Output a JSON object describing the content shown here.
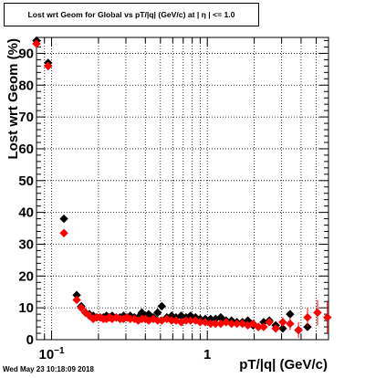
{
  "chart_data": {
    "type": "scatter",
    "title": "Lost wrt Geom for Global vs pT/|q| (GeV/c) at | η | <= 1.0",
    "xlabel": "pT/|q| (GeV/c)",
    "ylabel": "Lost wrt Geom (%)",
    "x_scale": "log",
    "xlim": [
      0.08,
      6.0
    ],
    "ylim": [
      0,
      95
    ],
    "grid": true,
    "x_tick_labels": [
      {
        "value": 0.1,
        "base": "10",
        "exp": "−1"
      },
      {
        "value": 1,
        "base": "1",
        "exp": ""
      }
    ],
    "y_ticks": [
      0,
      10,
      20,
      30,
      40,
      50,
      60,
      70,
      80,
      90
    ],
    "y_tick_labels": [
      "0",
      "10",
      "20",
      "30",
      "40",
      "50",
      "60",
      "70",
      "80",
      "90"
    ],
    "series": [
      {
        "color": "#000000",
        "x": [
          0.08,
          0.095,
          0.12,
          0.145,
          0.155,
          0.165,
          0.175,
          0.185,
          0.195,
          0.205,
          0.215,
          0.225,
          0.235,
          0.245,
          0.26,
          0.275,
          0.29,
          0.305,
          0.32,
          0.34,
          0.36,
          0.38,
          0.4,
          0.42,
          0.45,
          0.48,
          0.51,
          0.55,
          0.59,
          0.63,
          0.68,
          0.73,
          0.78,
          0.84,
          0.9,
          0.97,
          1.05,
          1.13,
          1.22,
          1.32,
          1.43,
          1.55,
          1.68,
          1.82,
          1.97,
          2.13,
          2.3,
          2.5,
          2.75,
          3.05,
          3.4,
          3.85,
          4.4
        ],
        "y": [
          94,
          87,
          38,
          14,
          10.5,
          8.5,
          8,
          7.5,
          7,
          7,
          7,
          7.5,
          7,
          7.5,
          7,
          7,
          7.5,
          7,
          7.5,
          7,
          7,
          8.5,
          7.5,
          8,
          7,
          8.5,
          10.5,
          7,
          7.5,
          7,
          7.5,
          7,
          7.5,
          7,
          6.5,
          6.5,
          6.5,
          6.5,
          7,
          6,
          6,
          5.5,
          5.5,
          6,
          4.5,
          4,
          5.5,
          6,
          4.5,
          3.5,
          8,
          3,
          4
        ]
      },
      {
        "color": "#ff0000",
        "x": [
          0.08,
          0.095,
          0.12,
          0.145,
          0.155,
          0.165,
          0.175,
          0.185,
          0.195,
          0.205,
          0.215,
          0.225,
          0.235,
          0.245,
          0.26,
          0.275,
          0.29,
          0.305,
          0.32,
          0.34,
          0.36,
          0.38,
          0.4,
          0.42,
          0.45,
          0.48,
          0.51,
          0.55,
          0.59,
          0.63,
          0.68,
          0.73,
          0.78,
          0.84,
          0.9,
          0.97,
          1.05,
          1.13,
          1.22,
          1.32,
          1.43,
          1.55,
          1.68,
          1.82,
          1.97,
          2.13,
          2.3,
          2.5,
          2.75,
          3.05,
          3.4,
          3.85,
          4.4,
          5.1,
          5.9
        ],
        "y": [
          93,
          86,
          33.5,
          12.5,
          10,
          8.5,
          7.5,
          6.5,
          7,
          7,
          6.5,
          6.5,
          7,
          6.5,
          7,
          6.5,
          6.5,
          7,
          6.5,
          6.5,
          6,
          6.5,
          6.5,
          6,
          6.5,
          6,
          6,
          6.5,
          6,
          6,
          5.5,
          6,
          6,
          6,
          5.5,
          5.5,
          5,
          5,
          5,
          5.5,
          5,
          5,
          5,
          4.5,
          5,
          4,
          4,
          5.5,
          3.5,
          5.5,
          5,
          3,
          7,
          8.5,
          7
        ],
        "y_err": [
          0.5,
          0.5,
          0.5,
          0.5,
          0.5,
          0.5,
          0.5,
          0.5,
          0.5,
          0.5,
          0.5,
          0.5,
          0.5,
          0.5,
          0.5,
          0.5,
          0.5,
          0.5,
          0.5,
          0.5,
          0.5,
          0.5,
          0.5,
          0.5,
          0.5,
          0.5,
          0.5,
          0.5,
          0.5,
          0.5,
          0.5,
          0.5,
          0.5,
          0.5,
          0.5,
          0.5,
          0.5,
          0.5,
          0.5,
          0.5,
          0.5,
          0.5,
          0.5,
          0.5,
          0.5,
          0.5,
          0.5,
          1,
          1,
          1.5,
          2,
          2.5,
          3,
          4,
          5
        ]
      }
    ],
    "footer": "Wed May 23 10:18:09 2018"
  }
}
